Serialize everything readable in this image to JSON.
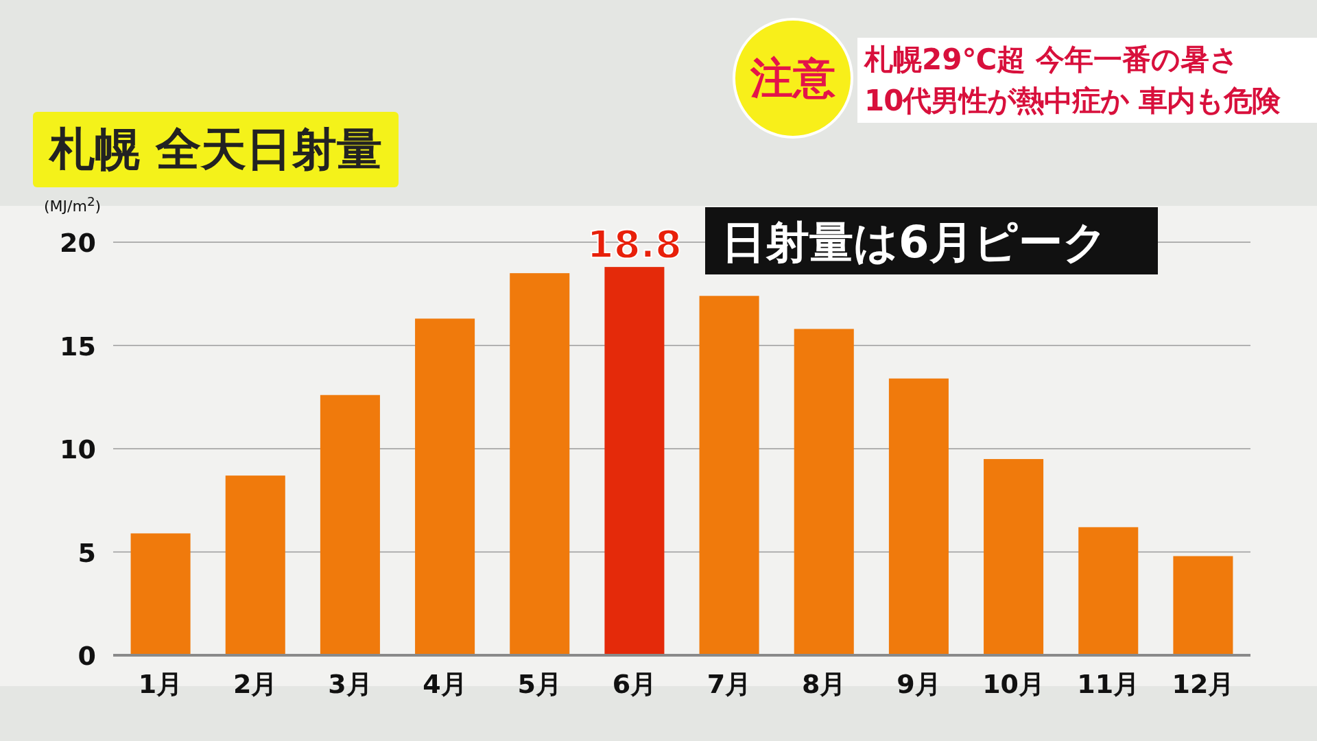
{
  "chart_data": {
    "type": "bar",
    "title": "札幌 全天日射量",
    "ylabel": "(MJ/m$^{2}$)",
    "categories": [
      "1月",
      "2月",
      "3月",
      "4月",
      "5月",
      "6月",
      "7月",
      "8月",
      "9月",
      "10月",
      "11月",
      "12月"
    ],
    "values": [
      5.9,
      8.7,
      12.6,
      16.3,
      18.5,
      18.8,
      17.4,
      15.8,
      13.4,
      9.5,
      6.2,
      4.8
    ],
    "colors": [
      "#f07a0c",
      "#f07a0c",
      "#f07a0c",
      "#f07a0c",
      "#f07a0c",
      "#e42a0a",
      "#f07a0c",
      "#f07a0c",
      "#f07a0c",
      "#f07a0c",
      "#f07a0c",
      "#f07a0c"
    ],
    "value_labels": [
      null,
      null,
      null,
      null,
      null,
      "18.8",
      null,
      null,
      null,
      null,
      null,
      null
    ],
    "ylim": [
      0,
      20
    ],
    "yticks": [
      0,
      5,
      10,
      15,
      20
    ],
    "grid": "y",
    "annotations": [
      "注意",
      "札幌29℃超 今年一番の暑さ",
      "10代男性が熱中症か 車内も危険",
      "日射量は6月ピーク"
    ]
  }
}
